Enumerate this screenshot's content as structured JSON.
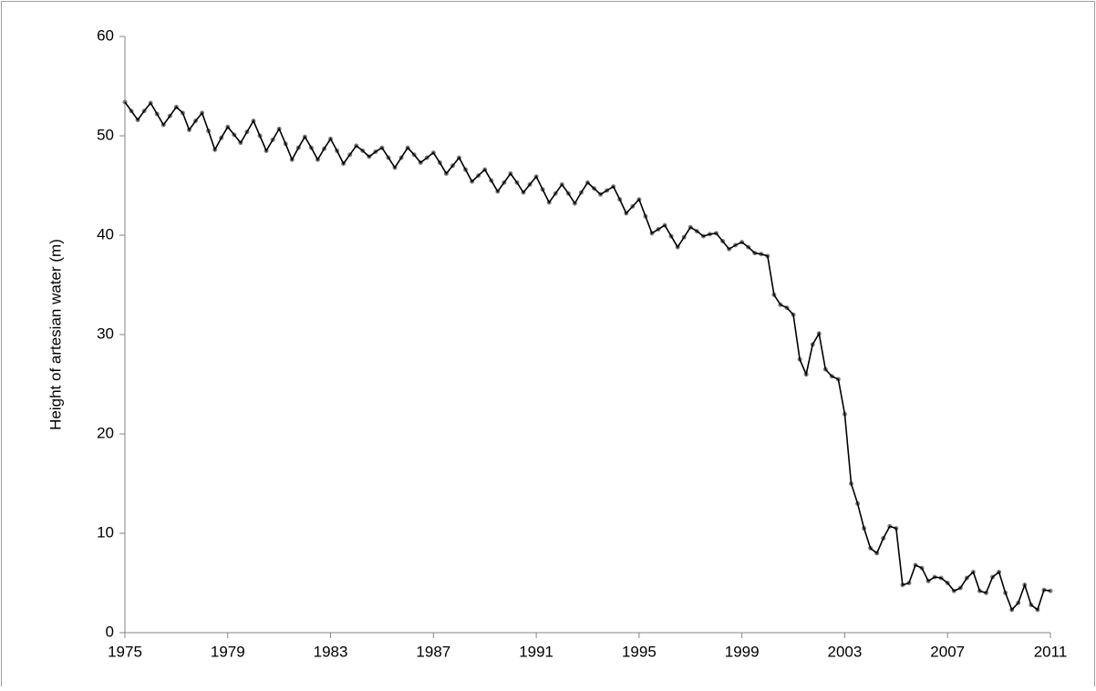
{
  "chart_data": {
    "type": "line",
    "y_label": "Height of artesian water (m)",
    "x": [
      1975,
      1975.25,
      1975.5,
      1975.75,
      1976,
      1976.25,
      1976.5,
      1976.75,
      1977,
      1977.25,
      1977.5,
      1977.75,
      1978,
      1978.25,
      1978.5,
      1978.75,
      1979,
      1979.25,
      1979.5,
      1979.75,
      1980,
      1980.25,
      1980.5,
      1980.75,
      1981,
      1981.25,
      1981.5,
      1981.75,
      1982,
      1982.25,
      1982.5,
      1982.75,
      1983,
      1983.25,
      1983.5,
      1983.75,
      1984,
      1984.25,
      1984.5,
      1984.75,
      1985,
      1985.25,
      1985.5,
      1985.75,
      1986,
      1986.25,
      1986.5,
      1986.75,
      1987,
      1987.25,
      1987.5,
      1987.75,
      1988,
      1988.25,
      1988.5,
      1988.75,
      1989,
      1989.25,
      1989.5,
      1989.75,
      1990,
      1990.25,
      1990.5,
      1990.75,
      1991,
      1991.25,
      1991.5,
      1991.75,
      1992,
      1992.25,
      1992.5,
      1992.75,
      1993,
      1993.25,
      1993.5,
      1993.75,
      1994,
      1994.25,
      1994.5,
      1994.75,
      1995,
      1995.25,
      1995.5,
      1995.75,
      1996,
      1996.25,
      1996.5,
      1996.75,
      1997,
      1997.25,
      1997.5,
      1997.75,
      1998,
      1998.25,
      1998.5,
      1998.75,
      1999,
      1999.25,
      1999.5,
      1999.75,
      2000,
      2000.25,
      2000.5,
      2000.75,
      2001,
      2001.25,
      2001.5,
      2001.75,
      2002,
      2002.25,
      2002.5,
      2002.75,
      2003,
      2003.25,
      2003.5,
      2003.75,
      2004,
      2004.25,
      2004.5,
      2004.75,
      2005,
      2005.25,
      2005.5,
      2005.75,
      2006,
      2006.25,
      2006.5,
      2006.75,
      2007,
      2007.25,
      2007.5,
      2007.75,
      2008,
      2008.25,
      2008.5,
      2008.75,
      2009,
      2009.25,
      2009.5,
      2009.75,
      2010,
      2010.25,
      2010.5,
      2010.75,
      2011
    ],
    "series": [
      {
        "color": "#000000",
        "marker_color": "#808080",
        "values": [
          53.4,
          52.5,
          51.6,
          52.5,
          53.3,
          52.2,
          51.1,
          52.0,
          52.9,
          52.3,
          50.6,
          51.5,
          52.3,
          50.5,
          48.6,
          49.8,
          50.9,
          50.1,
          49.3,
          50.4,
          51.5,
          50.0,
          48.5,
          49.6,
          50.7,
          49.2,
          47.6,
          48.8,
          49.9,
          48.8,
          47.6,
          48.7,
          49.7,
          48.5,
          47.2,
          48.1,
          49.0,
          48.5,
          47.9,
          48.4,
          48.8,
          47.8,
          46.8,
          47.8,
          48.8,
          48.1,
          47.3,
          47.8,
          48.3,
          47.3,
          46.2,
          47.0,
          47.8,
          46.6,
          45.4,
          46.0,
          46.6,
          45.5,
          44.4,
          45.3,
          46.2,
          45.3,
          44.3,
          45.1,
          45.9,
          44.6,
          43.3,
          44.2,
          45.1,
          44.2,
          43.2,
          44.3,
          45.3,
          44.7,
          44.1,
          44.5,
          44.9,
          43.6,
          42.2,
          42.9,
          43.6,
          41.9,
          40.2,
          40.6,
          41.0,
          39.9,
          38.8,
          39.8,
          40.8,
          40.4,
          39.9,
          40.1,
          40.2,
          39.4,
          38.6,
          39.0,
          39.3,
          38.8,
          38.2,
          38.1,
          37.9,
          34.0,
          33.0,
          32.7,
          32.0,
          27.5,
          26.0,
          29.0,
          30.1,
          26.5,
          25.8,
          25.5,
          22.0,
          15.0,
          13.0,
          10.5,
          8.5,
          8.0,
          9.5,
          10.7,
          10.5,
          4.8,
          5.0,
          6.8,
          6.5,
          5.2,
          5.6,
          5.5,
          5.0,
          4.2,
          4.5,
          5.5,
          6.1,
          4.2,
          4.0,
          5.6,
          6.1,
          4.0,
          2.3,
          3.0,
          4.8,
          2.8,
          2.3,
          4.3,
          4.2
        ]
      }
    ],
    "xlim": [
      1975,
      2011
    ],
    "xticks": [
      1975,
      1979,
      1983,
      1987,
      1991,
      1995,
      1999,
      2003,
      2007,
      2011
    ],
    "ylim": [
      0,
      60
    ],
    "yticks": [
      0,
      10,
      20,
      30,
      40,
      50,
      60
    ],
    "grid": false
  }
}
